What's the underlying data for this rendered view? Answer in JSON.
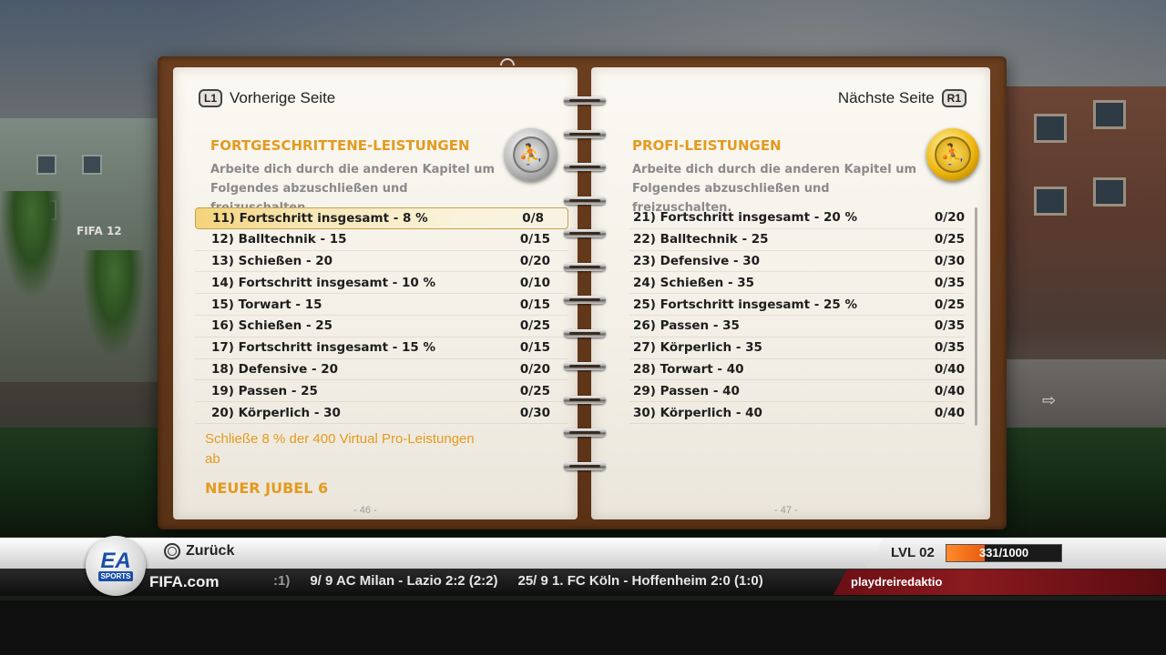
{
  "left_page": {
    "nav": {
      "button": "L1",
      "label": "Vorherige Seite"
    },
    "title": "FORTGESCHRITTENE-LEISTUNGEN",
    "description": "Arbeite dich durch die anderen Kapitel um Folgendes abzuschließen und freizuschalten.",
    "badge_icon": "silver-player-icon",
    "items": [
      {
        "name": "11) Fortschritt insgesamt - 8 %",
        "value": "0/8",
        "selected": true
      },
      {
        "name": "12) Balltechnik - 15",
        "value": "0/15"
      },
      {
        "name": "13) Schießen - 20",
        "value": "0/20"
      },
      {
        "name": "14) Fortschritt insgesamt - 10 %",
        "value": "0/10"
      },
      {
        "name": "15) Torwart - 15",
        "value": "0/15"
      },
      {
        "name": "16) Schießen - 25",
        "value": "0/25"
      },
      {
        "name": "17) Fortschritt insgesamt - 15 %",
        "value": "0/15"
      },
      {
        "name": "18) Defensive - 20",
        "value": "0/20"
      },
      {
        "name": "19) Passen - 25",
        "value": "0/25"
      },
      {
        "name": "20) Körperlich - 30",
        "value": "0/30"
      }
    ],
    "reward_description": "Schließe 8 % der 400 Virtual Pro-Leistungen ab",
    "reward_title": "NEUER JUBEL 6",
    "page_number": "- 46 -"
  },
  "right_page": {
    "nav": {
      "button": "R1",
      "label": "Nächste Seite"
    },
    "title": "PROFI-LEISTUNGEN",
    "description": "Arbeite dich durch die anderen Kapitel um Folgendes abzuschließen und freizuschalten.",
    "badge_icon": "gold-player-icon",
    "items": [
      {
        "name": "21) Fortschritt insgesamt - 20 %",
        "value": "0/20"
      },
      {
        "name": "22) Balltechnik - 25",
        "value": "0/25"
      },
      {
        "name": "23) Defensive - 30",
        "value": "0/30"
      },
      {
        "name": "24) Schießen - 35",
        "value": "0/35"
      },
      {
        "name": "25) Fortschritt insgesamt - 25 %",
        "value": "0/25"
      },
      {
        "name": "26) Passen - 35",
        "value": "0/35"
      },
      {
        "name": "27) Körperlich - 35",
        "value": "0/35"
      },
      {
        "name": "28) Torwart - 40",
        "value": "0/40"
      },
      {
        "name": "29) Passen - 40",
        "value": "0/40"
      },
      {
        "name": "30) Körperlich - 40",
        "value": "0/40"
      }
    ],
    "page_number": "- 47 -"
  },
  "bottom_bar": {
    "back_label": "Zurück",
    "ea_logo_text": "EA",
    "ea_sports_text": "SPORTS",
    "fifa_site": "FIFA.com",
    "ticker": [
      ":1)",
      "9/ 9 AC Milan - Lazio 2:2 (2:2)",
      "25/ 9 1. FC Köln - Hoffenheim 2:0 (1:0)"
    ],
    "level": "LVL 02",
    "xp_text": "331/1000",
    "xp_fraction": 0.331,
    "username": "playdreiredaktio"
  },
  "scene": {
    "wall_text": "FIFA 12"
  },
  "colors": {
    "accent_orange": "#e49a1f",
    "xp_orange": "#f07a20",
    "user_red": "#8a1a1f"
  }
}
